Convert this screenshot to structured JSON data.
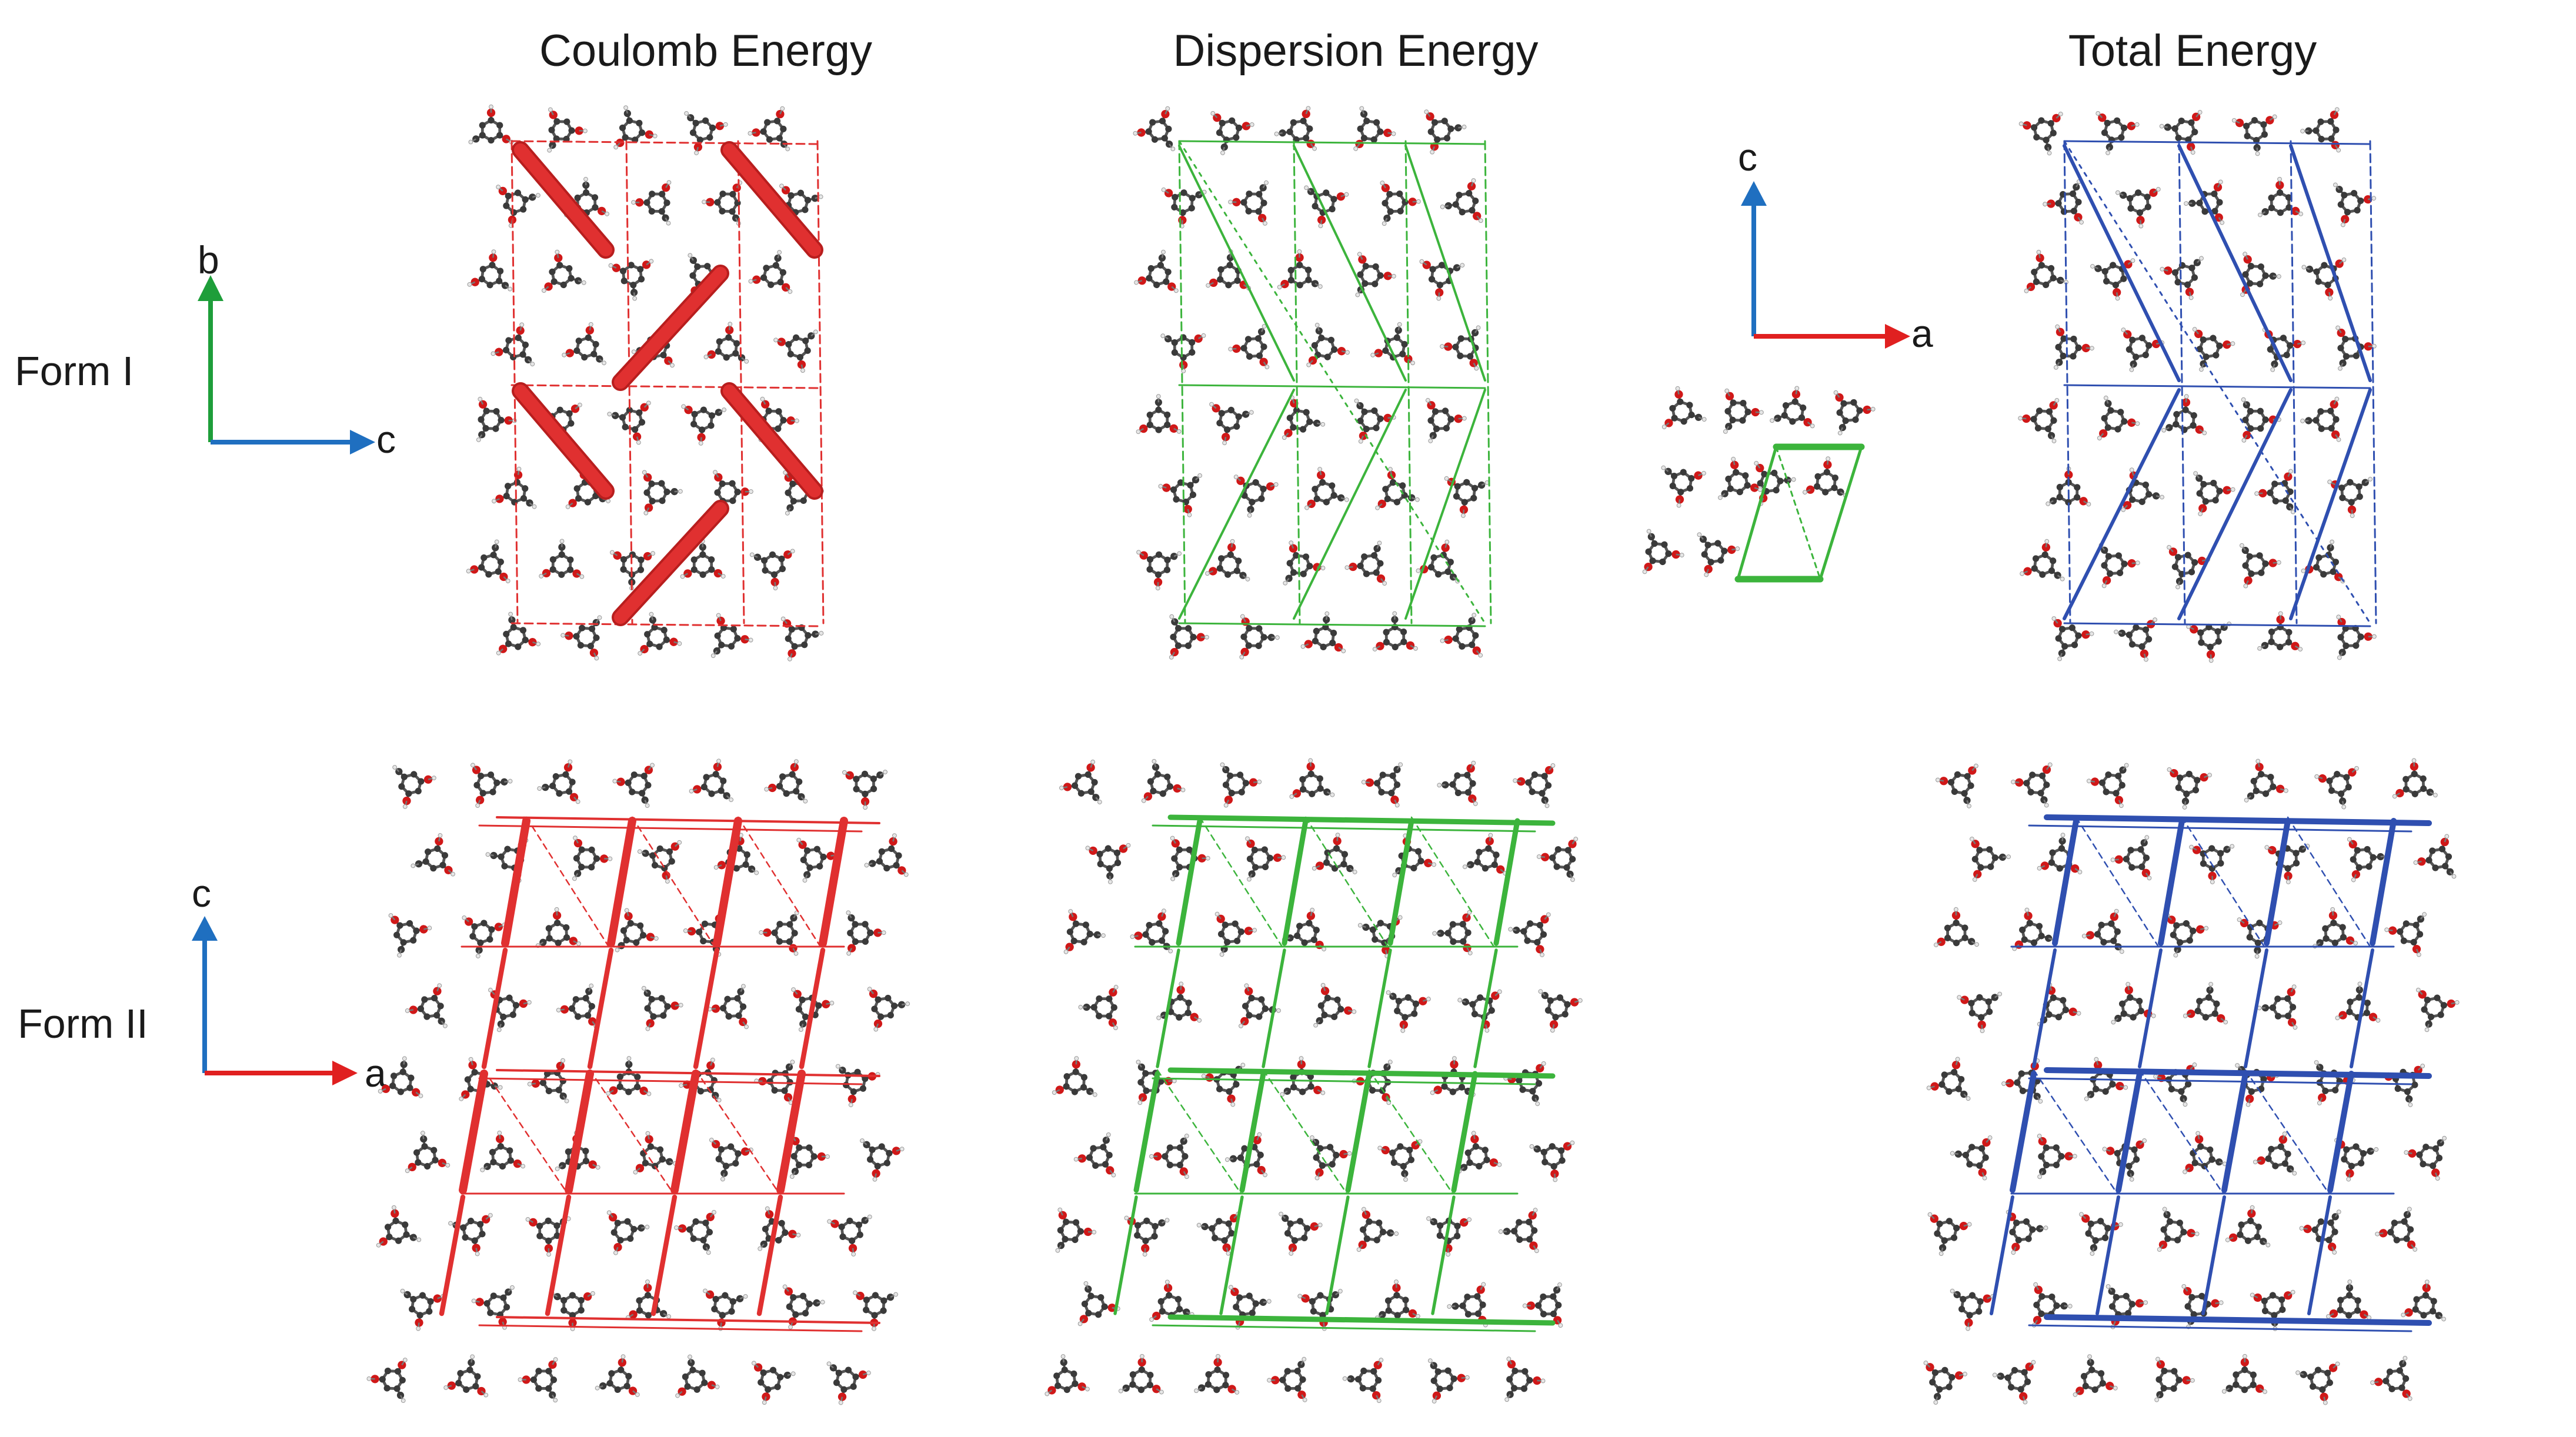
{
  "titles": {
    "coulomb": "Coulomb Energy",
    "dispersion": "Dispersion Energy",
    "total": "Total Energy"
  },
  "rows": {
    "form1": "Form I",
    "form2": "Form II"
  },
  "axes": {
    "form1_vertical": "b",
    "form1_horizontal": "c",
    "inset_vertical": "c",
    "inset_horizontal": "a",
    "form2_vertical": "c",
    "form2_horizontal": "a"
  },
  "colors": {
    "coulomb": "#e03030",
    "dispersion": "#3cb43c",
    "total": "#2f4fb0",
    "axis_red": "#e02020",
    "axis_green": "#1e9e3a",
    "axis_blue": "#1f6fc0",
    "atom_carbon": "#3a3a3a",
    "atom_oxygen": "#d01818",
    "atom_hydrogen": "#e6e6e6"
  }
}
